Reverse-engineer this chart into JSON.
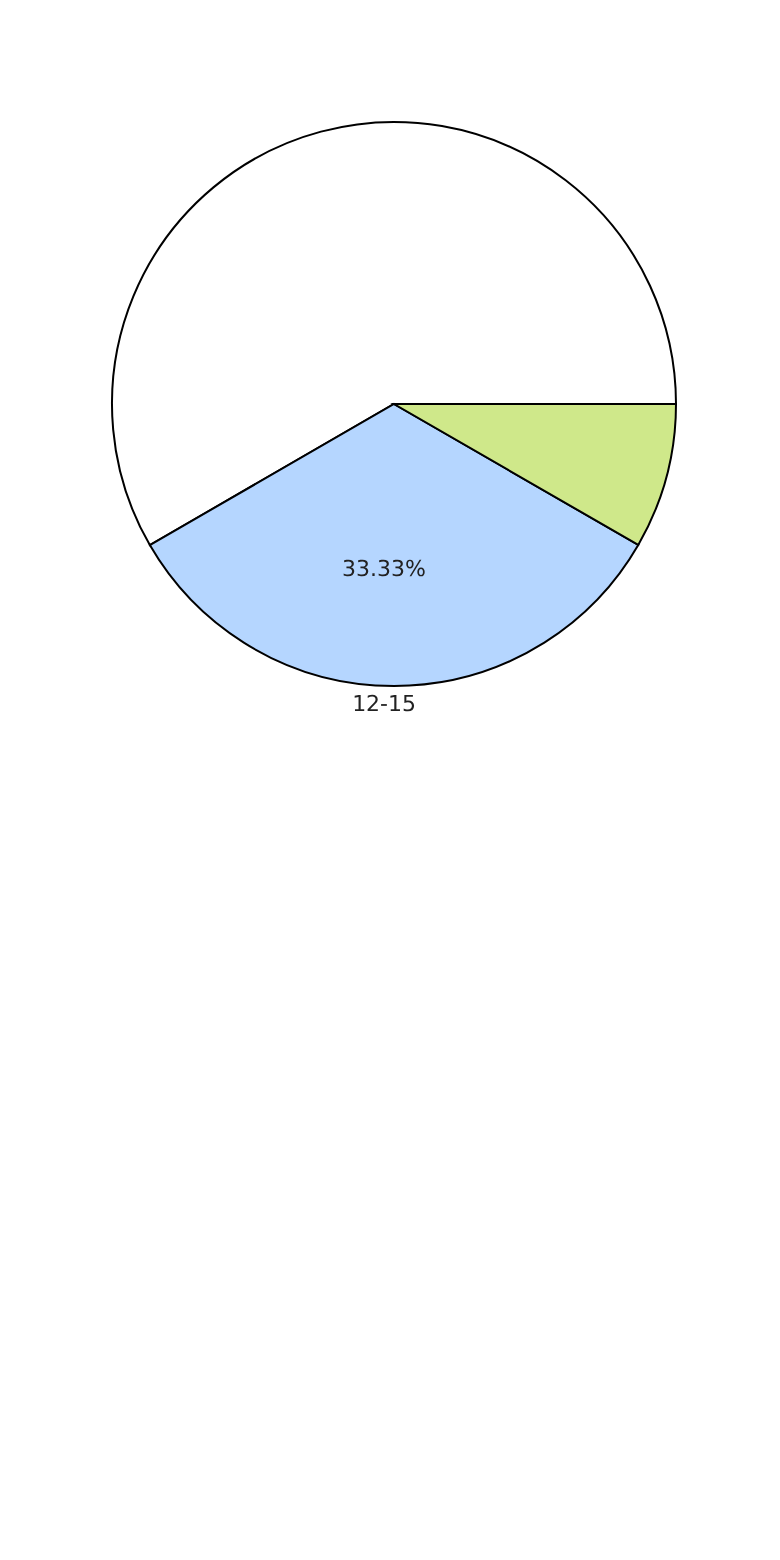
{
  "chart_data": {
    "type": "pie",
    "categories": [
      null,
      "12-15",
      null
    ],
    "values": [
      58.34,
      33.33,
      8.33
    ],
    "colors": [
      "#ffffff",
      "#b5d6ff",
      "#cfe88a"
    ],
    "value_labels": [
      null,
      "33.33%",
      null
    ]
  }
}
